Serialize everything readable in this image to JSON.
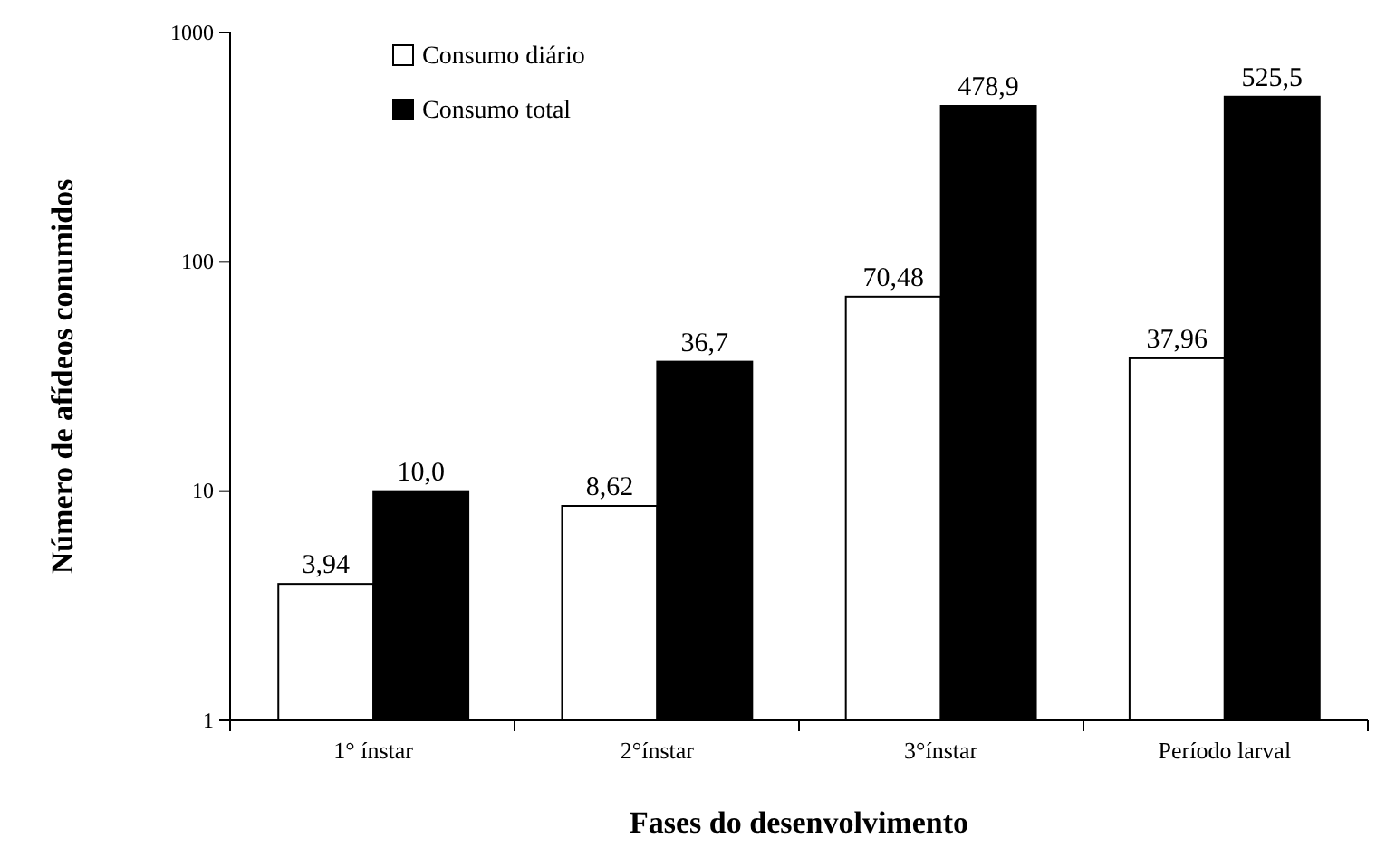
{
  "chart_data": {
    "type": "bar",
    "xlabel": "Fases do desenvolvimento",
    "ylabel": "Número de afídeos conumidos",
    "categories": [
      "1° ínstar",
      "2°ínstar",
      "3°ínstar",
      "Período larval"
    ],
    "series": [
      {
        "name": "Consumo diário",
        "color": "#ffffff",
        "values": [
          3.94,
          8.62,
          70.48,
          37.96
        ],
        "value_labels": [
          "3,94",
          "8,62",
          "70,48",
          "37,96"
        ]
      },
      {
        "name": "Consumo total",
        "color": "#000000",
        "values": [
          10.0,
          36.7,
          478.9,
          525.5
        ],
        "value_labels": [
          "10,0",
          "36,7",
          "478,9",
          "525,5"
        ]
      }
    ],
    "log": true,
    "ylim": [
      1,
      1000
    ],
    "yticks": [
      1,
      10,
      100,
      1000
    ],
    "legend": "top left",
    "grid": false
  }
}
